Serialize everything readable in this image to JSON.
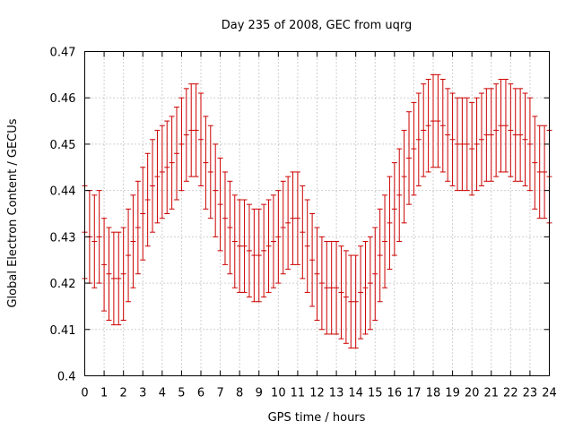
{
  "chart_data": {
    "type": "scatter",
    "title": "Day 235 of 2008, GEC from uqrg",
    "xlabel": "GPS time / hours",
    "ylabel": "Global Electron Content / GECUs",
    "xlim": [
      0,
      24
    ],
    "ylim": [
      0.4,
      0.47
    ],
    "x_ticks": [
      "0",
      "1",
      "2",
      "3",
      "4",
      "5",
      "6",
      "7",
      "8",
      "9",
      "10",
      "11",
      "12",
      "13",
      "14",
      "15",
      "16",
      "17",
      "18",
      "19",
      "20",
      "21",
      "22",
      "23",
      "24"
    ],
    "y_ticks": [
      "0.4",
      "0.41",
      "0.42",
      "0.43",
      "0.44",
      "0.45",
      "0.46",
      "0.47"
    ],
    "grid": true,
    "error_bar": 0.01,
    "series_color": "#cc0000",
    "series": [
      {
        "x": [
          0,
          0.25,
          0.5,
          0.75,
          1,
          1.25,
          1.5,
          1.75,
          2,
          2.25,
          2.5,
          2.75,
          3,
          3.25,
          3.5,
          3.75,
          4,
          4.25,
          4.5,
          4.75,
          5,
          5.25,
          5.5,
          5.75,
          6,
          6.25,
          6.5,
          6.75,
          7,
          7.25,
          7.5,
          7.75,
          8,
          8.25,
          8.5,
          8.75,
          9,
          9.25,
          9.5,
          9.75,
          10,
          10.25,
          10.5,
          10.75,
          11,
          11.25,
          11.5,
          11.75,
          12,
          12.25,
          12.5,
          12.75,
          13,
          13.25,
          13.5,
          13.75,
          14,
          14.25,
          14.5,
          14.75,
          15,
          15.25,
          15.5,
          15.75,
          16,
          16.25,
          16.5,
          16.75,
          17,
          17.25,
          17.5,
          17.75,
          18,
          18.25,
          18.5,
          18.75,
          19,
          19.25,
          19.5,
          19.75,
          20,
          20.25,
          20.5,
          20.75,
          21,
          21.25,
          21.5,
          21.75,
          22,
          22.25,
          22.5,
          22.75,
          23,
          23.25,
          23.5,
          23.75,
          24
        ],
        "y": [
          0.431,
          0.43,
          0.429,
          0.43,
          0.424,
          0.422,
          0.421,
          0.421,
          0.422,
          0.426,
          0.429,
          0.432,
          0.435,
          0.438,
          0.441,
          0.443,
          0.444,
          0.445,
          0.446,
          0.448,
          0.45,
          0.452,
          0.453,
          0.453,
          0.451,
          0.446,
          0.444,
          0.44,
          0.437,
          0.434,
          0.432,
          0.429,
          0.428,
          0.428,
          0.427,
          0.426,
          0.426,
          0.427,
          0.428,
          0.429,
          0.43,
          0.432,
          0.433,
          0.434,
          0.434,
          0.431,
          0.428,
          0.425,
          0.422,
          0.42,
          0.419,
          0.419,
          0.419,
          0.418,
          0.417,
          0.416,
          0.416,
          0.418,
          0.419,
          0.42,
          0.422,
          0.426,
          0.429,
          0.433,
          0.436,
          0.439,
          0.443,
          0.447,
          0.449,
          0.451,
          0.453,
          0.454,
          0.455,
          0.455,
          0.454,
          0.452,
          0.451,
          0.45,
          0.45,
          0.45,
          0.449,
          0.45,
          0.451,
          0.452,
          0.452,
          0.453,
          0.454,
          0.454,
          0.453,
          0.452,
          0.452,
          0.451,
          0.45,
          0.446,
          0.444,
          0.444,
          0.443
        ]
      }
    ]
  }
}
